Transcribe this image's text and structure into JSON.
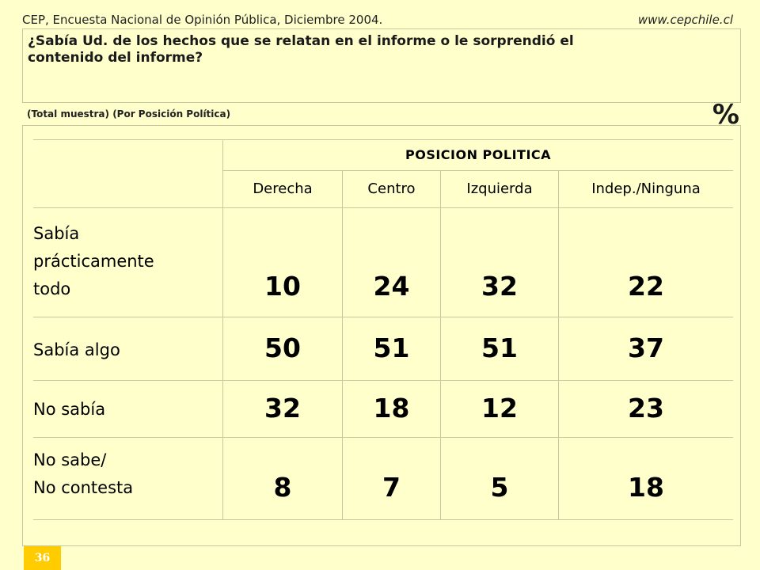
{
  "header": {
    "source": "CEP, Encuesta Nacional de Opinión Pública, Diciembre 2004.",
    "website": "www.cepchile.cl"
  },
  "question": {
    "line1": "¿Sabía Ud. de los hechos que se relatan en el informe o le sorprendió el",
    "line2": "contenido del informe?"
  },
  "subtitle": "(Total muestra) (Por Posición Política)",
  "unit": "%",
  "table": {
    "group_header": "POSICION POLITICA",
    "columns": [
      "Derecha",
      "Centro",
      "Izquierda",
      "Indep./Ninguna"
    ],
    "rows": [
      {
        "label_lines": [
          "Sabía",
          "prácticamente",
          "todo"
        ],
        "values": [
          "10",
          "24",
          "32",
          "22"
        ]
      },
      {
        "label_lines": [
          "Sabía algo"
        ],
        "values": [
          "50",
          "51",
          "51",
          "37"
        ]
      },
      {
        "label_lines": [
          "No sabía"
        ],
        "values": [
          "32",
          "18",
          "12",
          "23"
        ]
      },
      {
        "label_lines": [
          "No sabe/",
          "No contesta"
        ],
        "values": [
          "8",
          "7",
          "5",
          "18"
        ]
      }
    ]
  },
  "page_number": "36"
}
